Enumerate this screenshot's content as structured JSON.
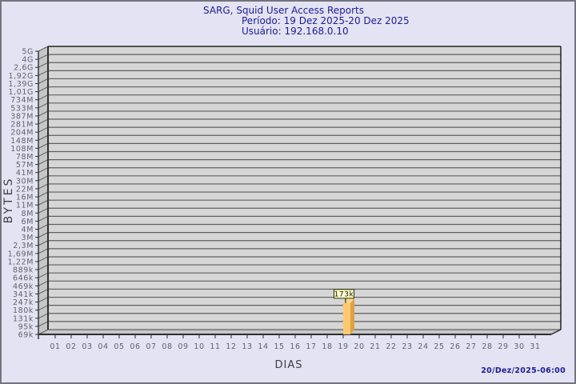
{
  "window": {
    "background": "#e3e3f3",
    "border_color": "#74747e"
  },
  "header": {
    "title": "SARG, Squid User Access Reports",
    "period": "Período: 19 Dez 2025-20 Dez 2025",
    "user": "Usuário: 192.168.0.10",
    "text_color": "#1c1c9c"
  },
  "footer": {
    "timestamp": "20/Dez/2025-06:00"
  },
  "chart_data": {
    "type": "bar",
    "title": "SARG, Squid User Access Reports",
    "subtitle": [
      "Período: 19 Dez 2025-20 Dez 2025",
      "Usuário: 192.168.0.10"
    ],
    "xlabel": "DIAS",
    "ylabel": "BYTES",
    "y_scale": "log",
    "grid": true,
    "legend": "none",
    "style": "3d-bar",
    "y_tick_labels": [
      "5G",
      "4G",
      "2,6G",
      "1,92G",
      "1,39G",
      "1,01G",
      "734M",
      "533M",
      "387M",
      "281M",
      "204M",
      "148M",
      "108M",
      "78M",
      "57M",
      "41M",
      "30M",
      "22M",
      "16M",
      "11M",
      "8M",
      "6M",
      "4M",
      "3M",
      "2,3M",
      "1,69M",
      "1,22M",
      "889k",
      "646k",
      "469k",
      "341k",
      "247k",
      "180k",
      "131k",
      "95k",
      "69k"
    ],
    "x_tick_labels": [
      "01",
      "02",
      "03",
      "04",
      "05",
      "06",
      "07",
      "08",
      "09",
      "10",
      "11",
      "12",
      "13",
      "14",
      "15",
      "16",
      "17",
      "18",
      "19",
      "20",
      "21",
      "22",
      "23",
      "24",
      "25",
      "26",
      "27",
      "28",
      "29",
      "30",
      "31"
    ],
    "bars": [
      {
        "day": "19",
        "value": 173000,
        "label": "173k"
      }
    ],
    "colors": {
      "plot_bg": "#d6d6d6",
      "wall": "#c6c6c6",
      "grid": "#5f5f5f",
      "frame": "#2e2e2e",
      "tick_text": "#63636b",
      "axis_title_text": "#3f3f47",
      "bar_front": "#fec96e",
      "bar_side": "#dfa143",
      "bar_top": "#fdd88c",
      "value_box_fill": "#ffffc8",
      "value_box_border": "#30300a",
      "value_text": "#111111"
    }
  }
}
